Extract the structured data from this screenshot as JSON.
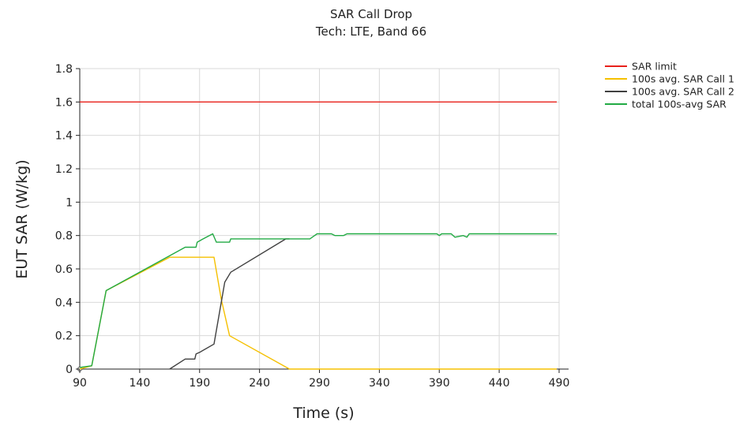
{
  "chart_data": {
    "type": "line",
    "title": "SAR Call Drop",
    "subtitle": "Tech: LTE, Band 66",
    "xlabel": "Time (s)",
    "ylabel": "EUT SAR (W/kg)",
    "xlim": [
      90,
      490
    ],
    "ylim": [
      0,
      1.8
    ],
    "xticks": [
      "90",
      "140",
      "190",
      "240",
      "290",
      "340",
      "390",
      "440",
      "490"
    ],
    "yticks": [
      "0",
      "0.2",
      "0.4",
      "0.6",
      "0.8",
      "1",
      "1.2",
      "1.4",
      "1.6",
      "1.8"
    ],
    "grid": true,
    "legend_position": "top-right",
    "series": [
      {
        "name": "SAR limit",
        "color": "#e8211b",
        "points": [
          [
            90,
            1.6
          ],
          [
            488,
            1.6
          ]
        ]
      },
      {
        "name": "100s avg. SAR Call 1",
        "color": "#f5c000",
        "points": [
          [
            90,
            0
          ],
          [
            100,
            0.02
          ],
          [
            112,
            0.47
          ],
          [
            165,
            0.67
          ],
          [
            198,
            0.67
          ],
          [
            202,
            0.67
          ],
          [
            208,
            0.42
          ],
          [
            215,
            0.2
          ],
          [
            265,
            0
          ],
          [
            488,
            0
          ]
        ]
      },
      {
        "name": "100s avg. SAR Call 2",
        "color": "#404040",
        "points": [
          [
            165,
            0
          ],
          [
            178,
            0.06
          ],
          [
            186,
            0.06
          ],
          [
            187,
            0.09
          ],
          [
            190,
            0.1
          ],
          [
            202,
            0.15
          ],
          [
            211,
            0.52
          ],
          [
            216,
            0.58
          ],
          [
            262,
            0.78
          ],
          [
            265,
            0.78
          ]
        ]
      },
      {
        "name": "total 100s-avg SAR",
        "color": "#22aa44",
        "points": [
          [
            90,
            0.01
          ],
          [
            100,
            0.02
          ],
          [
            112,
            0.47
          ],
          [
            178,
            0.73
          ],
          [
            187,
            0.73
          ],
          [
            188,
            0.76
          ],
          [
            193,
            0.78
          ],
          [
            201,
            0.81
          ],
          [
            204,
            0.76
          ],
          [
            215,
            0.76
          ],
          [
            216,
            0.78
          ],
          [
            262,
            0.78
          ],
          [
            282,
            0.78
          ],
          [
            286,
            0.8
          ],
          [
            288,
            0.81
          ],
          [
            300,
            0.81
          ],
          [
            303,
            0.8
          ],
          [
            310,
            0.8
          ],
          [
            313,
            0.81
          ],
          [
            388,
            0.81
          ],
          [
            390,
            0.8
          ],
          [
            392,
            0.81
          ],
          [
            400,
            0.81
          ],
          [
            403,
            0.79
          ],
          [
            410,
            0.8
          ],
          [
            413,
            0.79
          ],
          [
            415,
            0.81
          ],
          [
            488,
            0.81
          ]
        ]
      }
    ]
  }
}
